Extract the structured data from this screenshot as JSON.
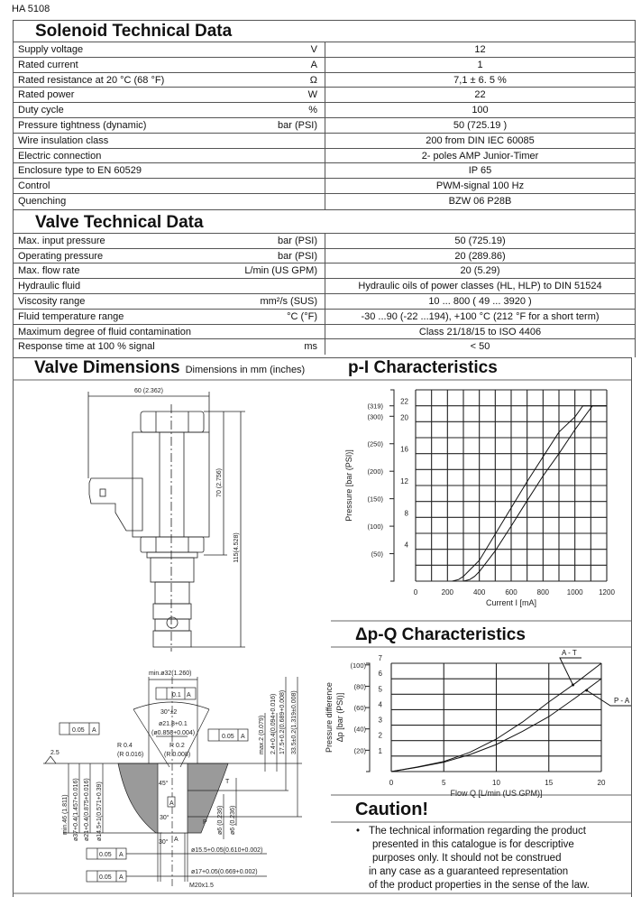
{
  "doc_id": "HA 5108",
  "solenoid": {
    "title": "Solenoid Technical Data",
    "rows": [
      {
        "label": "Supply voltage",
        "unit": "V",
        "value": "12"
      },
      {
        "label": "Rated current",
        "unit": "A",
        "value": "1"
      },
      {
        "label": "Rated resistance at  20 °C (68 °F)",
        "unit": "Ω",
        "value": "7,1 ±  6. 5 %"
      },
      {
        "label": "Rated power",
        "unit": "W",
        "value": "22"
      },
      {
        "label": "Duty cycle",
        "unit": "%",
        "value": "100"
      },
      {
        "label": "Pressure tightness (dynamic)",
        "unit": "bar (PSI)",
        "value": "50 (725.19 )"
      },
      {
        "label": "Wire insulation class",
        "unit": "",
        "value": "200 from DIN IEC 60085"
      },
      {
        "label": "Electric connection",
        "unit": "",
        "value": "2- poles  AMP Junior-Timer"
      },
      {
        "label": "Enclosure type to EN 60529",
        "unit": "",
        "value": "IP 65"
      },
      {
        "label": "Control",
        "unit": "",
        "value": "PWM-signal 100 Hz"
      },
      {
        "label": "Quenching",
        "unit": "",
        "value": "BZW 06 P28B"
      }
    ]
  },
  "valve": {
    "title": "Valve Technical Data",
    "rows": [
      {
        "label": "Max. input pressure",
        "unit": "bar (PSI)",
        "value": "50 (725.19)"
      },
      {
        "label": "Operating pressure",
        "unit": "bar (PSI)",
        "value": "20 (289.86)"
      },
      {
        "label": "Max. flow rate",
        "unit": "L/min (US GPM)",
        "value": "20 (5.29)"
      },
      {
        "label": "Hydraulic fluid",
        "unit": "",
        "value": "Hydraulic oils of power classes (HL, HLP) to DIN 51524"
      },
      {
        "label": "Viscosity range",
        "unit": "mm²/s (SUS)",
        "value": "10 ... 800 ( 49 ... 3920 )"
      },
      {
        "label": "Fluid temperature range",
        "unit": "°C (°F)",
        "value": "-30 ...90 (-22 ...194), +100 °C (212 °F  for a short term)"
      },
      {
        "label": "Maximum degree of fluid contamination",
        "unit": "",
        "value": "Class 21/18/15 to ISO 4406"
      },
      {
        "label": "Response time at 100 % signal",
        "unit": "ms",
        "value": "< 50"
      }
    ]
  },
  "dimensions": {
    "title": "Valve Dimensions",
    "subtitle": "Dimensions in  mm (inches)",
    "valve_labels": {
      "width": "60 (2.362)",
      "body_height": "70 (2.756)",
      "total_height": "115(4.528)"
    },
    "cavity_labels": {
      "min_dia": "min.ø32(1.260)",
      "runout": "0.1",
      "datum": "A",
      "angle": "30°±2",
      "dia_21_8": "ø21.8+0.1",
      "dia_21_8_in": "(ø0.858+0.004)",
      "tol": "0.05",
      "r04": "R 0.4",
      "r04_in": "(R 0.016)",
      "r02": "R 0.2",
      "r02_in": "(R 0.008)",
      "roughness": "2.5",
      "max2": "max.2 (0.079)",
      "d24": "2.4+0.4(0.094+0.016)",
      "d175": "17.5+0.2(0.689+0.008)",
      "d335": "33.5±0.2(1.319±0.008)",
      "min46": "min.46 (1.811)",
      "dia37": "ø37+0.4(1.457+0.016)",
      "dia21": "ø21+0.4(0.875+0.016)",
      "dia145": "ø14.5+1(0.571+0.39)",
      "a45": "45°",
      "a30a": "30°",
      "a30b": "30°",
      "port_t": "T",
      "port_p": "P",
      "port_a": "A",
      "dia6a": "ø6 (0.236)",
      "dia6b": "ø6 (0.236)",
      "dia155": "ø15.5+0.05(0.610+0.002)",
      "dia17": "ø17+0.05(0.669+0.002)",
      "thread": "M20x1.5"
    }
  },
  "chart_data": [
    {
      "type": "line",
      "title": "p-I Characteristics",
      "xlabel": "Current I [mA]",
      "ylabel": "Pressure [bar (PSI)]",
      "xlim": [
        0,
        1200
      ],
      "ylim": [
        0,
        24
      ],
      "grid": true,
      "xticks": [
        0,
        200,
        400,
        600,
        800,
        1000,
        1200
      ],
      "yticks": [
        4,
        8,
        12,
        16,
        20,
        22
      ],
      "secondary_yticks": [
        {
          "label": "(50)",
          "psi": 50
        },
        {
          "label": "(100)",
          "psi": 100
        },
        {
          "label": "(150)",
          "psi": 150
        },
        {
          "label": "(200)",
          "psi": 200
        },
        {
          "label": "(250)",
          "psi": 250
        },
        {
          "label": "(300)",
          "psi": 300
        },
        {
          "label": "(319)",
          "psi": 319
        }
      ],
      "series": [
        {
          "x": [
            230,
            270,
            300,
            330,
            400,
            500,
            600,
            700,
            800,
            900,
            1000,
            1050,
            1200
          ],
          "y": [
            0,
            0.2,
            0.6,
            1.2,
            2.6,
            5.9,
            9.2,
            12.5,
            15.6,
            18.7,
            20.6,
            22,
            22
          ]
        },
        {
          "x": [
            300,
            340,
            370,
            400,
            500,
            600,
            700,
            800,
            900,
            1000,
            1110,
            1200
          ],
          "y": [
            0,
            0.2,
            0.6,
            1.2,
            3.8,
            6.9,
            10.1,
            13.2,
            16.0,
            19.0,
            22,
            22
          ]
        }
      ]
    },
    {
      "type": "line",
      "title": "Δp-Q Characteristics",
      "xlabel": "Flow Q [L/min (US GPM)]",
      "ylabel": "Pressure difference",
      "ylabel2": "Δp  [bar (PSI)]",
      "xlim": [
        0,
        20
      ],
      "ylim": [
        0,
        7
      ],
      "grid": true,
      "xticks": [
        0,
        5,
        10,
        15,
        20
      ],
      "yticks": [
        1,
        2,
        3,
        4,
        5,
        6,
        7
      ],
      "secondary_yticks": [
        {
          "label": "(20)",
          "psi": 20
        },
        {
          "label": "(40)",
          "psi": 40
        },
        {
          "label": "(60)",
          "psi": 60
        },
        {
          "label": "(80)",
          "psi": 80
        },
        {
          "label": "(100)",
          "psi": 100
        }
      ],
      "series": [
        {
          "name": "A - T",
          "x": [
            0,
            2.5,
            5,
            7.5,
            10,
            12.5,
            15,
            17.5,
            20
          ],
          "y": [
            0,
            0.3,
            0.65,
            1.25,
            2.1,
            3.2,
            4.5,
            5.7,
            7
          ]
        },
        {
          "name": "P - A",
          "x": [
            0,
            2.5,
            5,
            7.5,
            10,
            12.5,
            15,
            17.5,
            20
          ],
          "y": [
            0,
            0.28,
            0.6,
            1.1,
            1.75,
            2.6,
            3.55,
            4.75,
            6
          ]
        }
      ]
    }
  ],
  "caution": {
    "title": "Caution!",
    "bullet": "•",
    "lines": [
      "The technical information regarding the product",
      "presented in this catalogue is for descriptive",
      "purposes only. It should not be construed",
      "in any case as a guaranteed representation",
      "of the product properties in the sense of the law."
    ]
  }
}
